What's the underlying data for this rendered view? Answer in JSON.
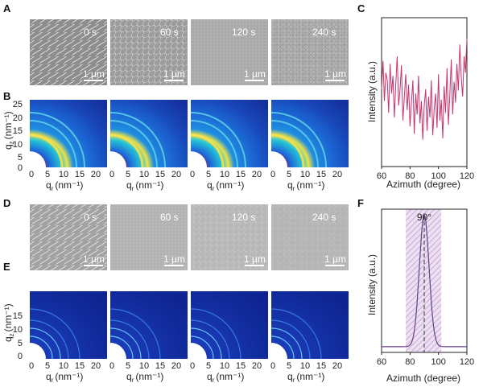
{
  "panel_labels": {
    "A": "A",
    "B": "B",
    "C": "C",
    "D": "D",
    "E": "E",
    "F": "F"
  },
  "row_A": {
    "times": [
      "0 s",
      "60 s",
      "120 s",
      "240 s"
    ],
    "scale": "1 µm",
    "tones": [
      "#8d8d8d",
      "#9b9b9b",
      "#a9a9a9",
      "#a3a3a3"
    ]
  },
  "row_D": {
    "times": [
      "0 s",
      "60 s",
      "120 s",
      "240 s"
    ],
    "scale": "1 µm",
    "tones": [
      "#a2a2a2",
      "#b3b3b3",
      "#b7b7b7",
      "#b5b5b5"
    ]
  },
  "giwaxs_B": {
    "ylabel_main": "q",
    "ylabel_sub": "z",
    "ylabel_unit": "(nm⁻¹)",
    "xlabel_main": "q",
    "xlabel_sub": "r",
    "xlabel_unit": "(nm⁻¹)",
    "yticks": [
      "25",
      "20",
      "15",
      "10",
      "5",
      "0"
    ],
    "xticks": [
      "0",
      "5",
      "10",
      "15",
      "20"
    ]
  },
  "giwaxs_E": {
    "ylabel_main": "q",
    "ylabel_sub": "z",
    "ylabel_unit": "(nm⁻¹)",
    "xlabel_main": "q",
    "xlabel_sub": "r",
    "xlabel_unit": "(nm⁻¹)",
    "yticks": [
      "15",
      "10",
      "5",
      "0"
    ],
    "xticks": [
      "0",
      "5",
      "10",
      "15",
      "20"
    ]
  },
  "chart_data": [
    {
      "panel": "C",
      "type": "line",
      "xlabel": "Azimuth (degree)",
      "ylabel": "Intensity (a.u.)",
      "xlim": [
        60,
        120
      ],
      "xticks": [
        60,
        80,
        100,
        120
      ],
      "color": "#c8336e",
      "x": [
        60,
        61,
        62,
        63,
        64,
        65,
        66,
        67,
        68,
        69,
        70,
        71,
        72,
        73,
        74,
        75,
        76,
        77,
        78,
        79,
        80,
        81,
        82,
        83,
        84,
        85,
        86,
        87,
        88,
        89,
        90,
        91,
        92,
        93,
        94,
        95,
        96,
        97,
        98,
        99,
        100,
        101,
        102,
        103,
        104,
        105,
        106,
        107,
        108,
        109,
        110,
        111,
        112,
        113,
        114,
        115,
        116,
        117,
        118,
        119,
        120
      ],
      "y": [
        0.52,
        0.71,
        0.44,
        0.63,
        0.58,
        0.36,
        0.69,
        0.49,
        0.61,
        0.33,
        0.56,
        0.74,
        0.41,
        0.52,
        0.68,
        0.31,
        0.47,
        0.62,
        0.38,
        0.55,
        0.27,
        0.43,
        0.58,
        0.22,
        0.49,
        0.35,
        0.61,
        0.29,
        0.44,
        0.18,
        0.41,
        0.52,
        0.24,
        0.47,
        0.33,
        0.58,
        0.21,
        0.39,
        0.49,
        0.26,
        0.62,
        0.31,
        0.45,
        0.19,
        0.54,
        0.36,
        0.66,
        0.28,
        0.48,
        0.72,
        0.35,
        0.57,
        0.43,
        0.69,
        0.51,
        0.82,
        0.61,
        0.47,
        0.74,
        0.63,
        0.86
      ]
    },
    {
      "panel": "F",
      "type": "line",
      "xlabel": "Azimuth (degree)",
      "ylabel": "Intensity (a.u.)",
      "xlim": [
        60,
        120
      ],
      "xticks": [
        60,
        80,
        100,
        120
      ],
      "peak_label": "90°",
      "peak_center": 90,
      "peak_fwhm": 8,
      "shaded_range": [
        77,
        102
      ],
      "shade_color": "#c9a6d6",
      "line_color": "#6a3f86",
      "baseline": 0.04,
      "peak_height": 0.92
    }
  ]
}
